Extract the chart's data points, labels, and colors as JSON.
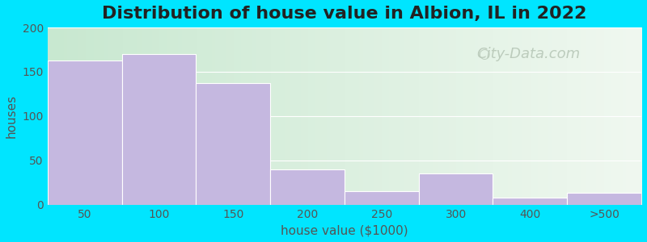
{
  "title": "Distribution of house value in Albion, IL in 2022",
  "xlabel": "house value ($1000)",
  "ylabel": "houses",
  "bar_labels": [
    "50",
    "100",
    "150",
    "200",
    "250",
    "300",
    "400",
    ">500"
  ],
  "bar_heights": [
    163,
    170,
    137,
    40,
    15,
    35,
    8,
    13
  ],
  "bar_color": "#c5b8e0",
  "bar_edgecolor": "#ffffff",
  "ylim": [
    0,
    200
  ],
  "yticks": [
    0,
    50,
    100,
    150,
    200
  ],
  "outer_bg": "#00e5ff",
  "title_fontsize": 16,
  "axis_label_fontsize": 11,
  "tick_fontsize": 10,
  "watermark_text": "City-Data.com",
  "watermark_color": "#b8c8b8",
  "watermark_fontsize": 13,
  "bg_left": "#c8e8d0",
  "bg_right": "#f0f8f0"
}
